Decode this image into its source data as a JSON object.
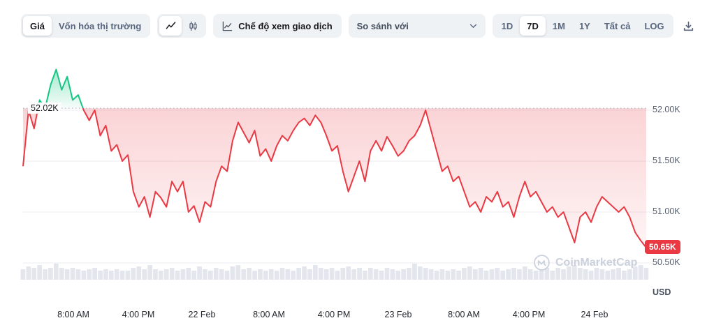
{
  "toolbar": {
    "price_label": "Giá",
    "marketcap_label": "Vốn hóa thị trường",
    "trading_view_label": "Chế độ xem giao dịch",
    "compare_placeholder": "So sánh với",
    "ranges": [
      "1D",
      "7D",
      "1M",
      "1Y",
      "Tất cả",
      "LOG"
    ],
    "active_range": "7D"
  },
  "icons": {
    "line_chart": "line-chart-icon",
    "candlestick": "candlestick-icon",
    "trading_view": "chart-axes-icon",
    "chevron_down": "chevron-down-icon",
    "download": "download-icon",
    "logo": "coinmarketcap-logo"
  },
  "watermark": {
    "text": "CoinMarketCap"
  },
  "chart_data": {
    "type": "line",
    "x_labels": [
      "8:00 AM",
      "4:00 PM",
      "22 Feb",
      "8:00 AM",
      "4:00 PM",
      "23 Feb",
      "8:00 AM",
      "4:00 PM",
      "24 Feb"
    ],
    "y_ticks": [
      {
        "label": "52.00K",
        "value": 52.0
      },
      {
        "label": "51.50K",
        "value": 51.5
      },
      {
        "label": "51.00K",
        "value": 51.0
      },
      {
        "label": "50.50K",
        "value": 50.5
      }
    ],
    "y_unit": "USD",
    "baseline": {
      "label": "52.02K",
      "value": 52.02
    },
    "last_price": {
      "label": "50.65K",
      "value": 50.65
    },
    "ylim": [
      50.35,
      52.55
    ],
    "grid": true,
    "legend": "none",
    "colors": {
      "up": "#16c784",
      "down": "#ea3943",
      "volume": "#e3e6ec",
      "grid": "#eceef2",
      "baseline_dots": "#a3abbd"
    },
    "prices": [
      51.45,
      52.0,
      51.82,
      52.1,
      52.02,
      52.25,
      52.4,
      52.2,
      52.33,
      52.1,
      52.15,
      52.0,
      51.9,
      52.0,
      51.75,
      51.85,
      51.6,
      51.66,
      51.5,
      51.56,
      51.2,
      51.05,
      51.15,
      50.95,
      51.2,
      51.14,
      51.05,
      51.3,
      51.2,
      51.3,
      51.0,
      51.06,
      50.9,
      51.1,
      51.05,
      51.3,
      51.45,
      51.4,
      51.7,
      51.88,
      51.78,
      51.68,
      51.8,
      51.55,
      51.62,
      51.5,
      51.65,
      51.75,
      51.7,
      51.8,
      51.88,
      51.92,
      51.85,
      51.95,
      51.88,
      51.75,
      51.6,
      51.65,
      51.4,
      51.2,
      51.35,
      51.5,
      51.3,
      51.6,
      51.7,
      51.6,
      51.74,
      51.65,
      51.55,
      51.6,
      51.7,
      51.75,
      51.85,
      52.0,
      51.8,
      51.6,
      51.4,
      51.45,
      51.3,
      51.35,
      51.2,
      51.05,
      51.1,
      51.0,
      51.15,
      51.1,
      51.2,
      51.05,
      51.1,
      50.95,
      51.15,
      51.3,
      51.15,
      51.2,
      51.1,
      51.0,
      51.05,
      50.95,
      51.0,
      50.85,
      50.7,
      50.95,
      51.0,
      50.9,
      51.05,
      51.15,
      51.1,
      51.05,
      51.0,
      51.05,
      50.95,
      50.8,
      50.72,
      50.65
    ],
    "volumes": [
      0.5,
      0.7,
      0.6,
      0.8,
      0.5,
      0.6,
      0.9,
      0.6,
      0.5,
      0.6,
      0.5,
      0.4,
      0.5,
      0.6,
      0.4,
      0.5,
      0.4,
      0.5,
      0.4,
      0.4,
      0.6,
      0.7,
      0.5,
      0.8,
      0.5,
      0.4,
      0.5,
      0.6,
      0.4,
      0.5,
      0.6,
      0.4,
      0.7,
      0.5,
      0.4,
      0.6,
      0.5,
      0.4,
      0.7,
      0.8,
      0.5,
      0.6,
      0.4,
      0.5,
      0.4,
      0.5,
      0.4,
      0.6,
      0.5,
      0.4,
      0.6,
      0.7,
      0.5,
      0.8,
      0.6,
      0.5,
      0.6,
      0.4,
      0.6,
      0.7,
      0.5,
      0.6,
      0.4,
      0.6,
      0.5,
      0.4,
      0.6,
      0.5,
      0.4,
      0.5,
      0.6,
      0.9,
      0.7,
      0.6,
      0.5,
      0.4,
      0.5,
      0.4,
      0.5,
      0.4,
      0.6,
      0.7,
      0.5,
      0.6,
      0.4,
      0.5,
      0.6,
      0.4,
      0.5,
      0.6,
      0.5,
      0.7,
      0.5,
      0.4,
      0.5,
      0.6,
      0.4,
      0.6,
      0.5,
      0.7,
      0.8,
      0.6,
      0.5,
      0.4,
      0.6,
      0.5,
      0.4,
      0.5,
      0.6,
      0.4,
      0.5,
      0.7,
      0.8,
      0.6
    ]
  }
}
